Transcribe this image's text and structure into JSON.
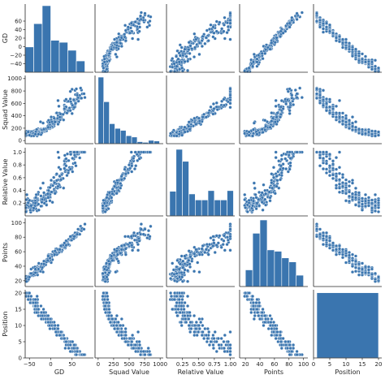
{
  "chart_data": {
    "type": "pairplot",
    "variables": [
      "GD",
      "Squad Value",
      "Relative Value",
      "Points",
      "Position"
    ],
    "axes": [
      {
        "name": "GD",
        "range": [
          -60,
          100
        ],
        "ticks": [
          -50,
          0,
          50
        ],
        "tick_labels": [
          "−50",
          "0",
          "50"
        ],
        "label_ticks": [
          60,
          40,
          20,
          0,
          -20,
          -40
        ],
        "label_tick_labels": [
          "60",
          "40",
          "20",
          "0",
          "−20",
          "−40"
        ]
      },
      {
        "name": "Squad Value",
        "range": [
          -50,
          1050
        ],
        "ticks": [
          0,
          250,
          500,
          750,
          1000
        ],
        "tick_labels": [
          "0",
          "250",
          "500",
          "750",
          "1000"
        ],
        "label_ticks": [
          1000,
          800,
          600,
          400,
          200,
          0
        ],
        "label_tick_labels": [
          "1000",
          "800",
          "600",
          "400",
          "200",
          "0"
        ]
      },
      {
        "name": "Relative Value",
        "range": [
          0,
          1.07
        ],
        "ticks": [
          0.25,
          0.5,
          0.75,
          1.0
        ],
        "tick_labels": [
          "0.25",
          "0.50",
          "0.75",
          "1.00"
        ],
        "label_ticks": [
          1.0,
          0.8,
          0.6,
          0.4,
          0.2
        ],
        "label_tick_labels": [
          "1.0",
          "0.8",
          "0.6",
          "0.4",
          "0.2"
        ]
      },
      {
        "name": "Points",
        "range": [
          12,
          106
        ],
        "ticks": [
          20,
          40,
          60,
          80,
          100
        ],
        "tick_labels": [
          "20",
          "40",
          "60",
          "80",
          "100"
        ],
        "label_ticks": [
          100,
          80,
          60,
          40,
          20
        ],
        "label_tick_labels": [
          "100",
          "80",
          "60",
          "40",
          "20"
        ]
      },
      {
        "name": "Position",
        "range": [
          0,
          21
        ],
        "ticks": [
          0,
          5,
          10,
          15,
          20
        ],
        "tick_labels": [
          "0",
          "5",
          "10",
          "15",
          "20"
        ],
        "label_ticks": [
          20,
          15,
          10,
          5,
          0
        ],
        "label_tick_labels": [
          "20",
          "15",
          "10",
          "5",
          "0"
        ]
      }
    ],
    "histograms": {
      "GD": {
        "edges": [
          -60,
          -40,
          -20,
          0,
          20,
          40,
          60,
          80
        ],
        "heights": [
          0.38,
          0.73,
          1.0,
          0.48,
          0.45,
          0.33,
          0.17
        ]
      },
      "Squad Value": {
        "edges": [
          0,
          90,
          180,
          270,
          360,
          450,
          540,
          630,
          720,
          810,
          900,
          990
        ],
        "heights": [
          1.0,
          0.63,
          0.3,
          0.23,
          0.2,
          0.12,
          0.1,
          0.03,
          0.02,
          0.05,
          0.04
        ]
      },
      "Relative Value": {
        "edges": [
          0.05,
          0.15,
          0.25,
          0.35,
          0.45,
          0.55,
          0.65,
          0.75,
          0.85,
          0.95,
          1.05
        ],
        "heights": [
          0.37,
          1.0,
          0.82,
          0.33,
          0.24,
          0.24,
          0.38,
          0.24,
          0.24,
          0.38
        ]
      },
      "Points": {
        "edges": [
          20,
          30,
          40,
          50,
          60,
          70,
          80,
          90,
          100
        ],
        "heights": [
          0.25,
          0.8,
          1.0,
          0.55,
          0.53,
          0.43,
          0.37,
          0.17
        ]
      },
      "Position": {
        "edges": [
          1,
          20
        ],
        "heights": [
          0.98
        ]
      }
    },
    "point_color": "#3a75af",
    "bar_color": "#3a75af",
    "grid": false,
    "legend": "none"
  }
}
